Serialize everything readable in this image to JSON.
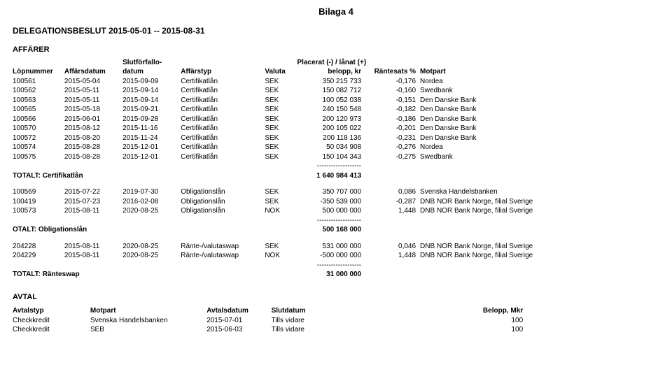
{
  "attachment_label": "Bilaga 4",
  "title": "DELEGATIONSBESLUT 2015-05-01 -- 2015-08-31",
  "affarer_label": "AFFÄRER",
  "headers": {
    "lopnummer": "Löpnummer",
    "affarsdatum": "Affärsdatum",
    "slutforfallo_top": "Slutförfallo-",
    "slutforfallo_bot": "datum",
    "affarstyp": "Affärstyp",
    "valuta": "Valuta",
    "placerat_top": "Placerat (-) / lånat (+)",
    "placerat_bot": "belopp, kr",
    "rantesats": "Räntesats %",
    "motpart": "Motpart"
  },
  "separator": "-------------------",
  "cert_rows": [
    {
      "lop": "100561",
      "ad": "2015-05-04",
      "sd": "2015-09-09",
      "typ": "Certifikatlån",
      "val": "SEK",
      "bel": "350 215 733",
      "rate": "-0,176",
      "mot": "Nordea"
    },
    {
      "lop": "100562",
      "ad": "2015-05-11",
      "sd": "2015-09-14",
      "typ": "Certifikatlån",
      "val": "SEK",
      "bel": "150 082 712",
      "rate": "-0,160",
      "mot": "Swedbank"
    },
    {
      "lop": "100563",
      "ad": "2015-05-11",
      "sd": "2015-09-14",
      "typ": "Certifikatlån",
      "val": "SEK",
      "bel": "100 052 038",
      "rate": "-0,151",
      "mot": "Den Danske Bank"
    },
    {
      "lop": "100565",
      "ad": "2015-05-18",
      "sd": "2015-09-21",
      "typ": "Certifikatlån",
      "val": "SEK",
      "bel": "240 150 548",
      "rate": "-0,182",
      "mot": "Den Danske Bank"
    },
    {
      "lop": "100566",
      "ad": "2015-06-01",
      "sd": "2015-09-28",
      "typ": "Certifikatlån",
      "val": "SEK",
      "bel": "200 120 973",
      "rate": "-0,186",
      "mot": "Den Danske Bank"
    },
    {
      "lop": "100570",
      "ad": "2015-08-12",
      "sd": "2015-11-16",
      "typ": "Certifikatlån",
      "val": "SEK",
      "bel": "200 105 022",
      "rate": "-0,201",
      "mot": "Den Danske Bank"
    },
    {
      "lop": "100572",
      "ad": "2015-08-20",
      "sd": "2015-11-24",
      "typ": "Certifikatlån",
      "val": "SEK",
      "bel": "200 118 136",
      "rate": "-0,231",
      "mot": "Den Danske Bank"
    },
    {
      "lop": "100574",
      "ad": "2015-08-28",
      "sd": "2015-12-01",
      "typ": "Certifikatlån",
      "val": "SEK",
      "bel": "50 034 908",
      "rate": "-0,276",
      "mot": "Nordea"
    },
    {
      "lop": "100575",
      "ad": "2015-08-28",
      "sd": "2015-12-01",
      "typ": "Certifikatlån",
      "val": "SEK",
      "bel": "150 104 343",
      "rate": "-0,275",
      "mot": "Swedbank"
    }
  ],
  "cert_total_label": "TOTALT: Certifikatlån",
  "cert_total_value": "1 640 984 413",
  "oblig_rows": [
    {
      "lop": "100569",
      "ad": "2015-07-22",
      "sd": "2019-07-30",
      "typ": "Obligationslån",
      "val": "SEK",
      "bel": "350 707 000",
      "rate": "0,086",
      "mot": "Svenska Handelsbanken"
    },
    {
      "lop": "100419",
      "ad": "2015-07-23",
      "sd": "2016-02-08",
      "typ": "Obligationslån",
      "val": "SEK",
      "bel": "-350 539 000",
      "rate": "-0,287",
      "mot": "DNB NOR Bank Norge, filial Sverige"
    },
    {
      "lop": "100573",
      "ad": "2015-08-11",
      "sd": "2020-08-25",
      "typ": "Obligationslån",
      "val": "NOK",
      "bel": "500 000 000",
      "rate": "1,448",
      "mot": "DNB NOR Bank Norge, filial Sverige"
    }
  ],
  "oblig_total_label": "OTALT: Obligationslån",
  "oblig_total_value": "500 168 000",
  "swap_rows": [
    {
      "lop": "204228",
      "ad": "2015-08-11",
      "sd": "2020-08-25",
      "typ": "Ränte-/valutaswap",
      "val": "SEK",
      "bel": "531 000 000",
      "rate": "0,046",
      "mot": "DNB NOR Bank Norge, filial Sverige"
    },
    {
      "lop": "204229",
      "ad": "2015-08-11",
      "sd": "2020-08-25",
      "typ": "Ränte-/valutaswap",
      "val": "NOK",
      "bel": "-500 000 000",
      "rate": "1,448",
      "mot": "DNB NOR Bank Norge, filial Sverige"
    }
  ],
  "swap_total_label": "TOTALT: Ränteswap",
  "swap_total_value": "31 000 000",
  "avtal_label": "AVTAL",
  "avtal_headers": {
    "typ": "Avtalstyp",
    "motpart": "Motpart",
    "datum": "Avtalsdatum",
    "slutdatum": "Slutdatum",
    "belopp": "Belopp, Mkr"
  },
  "avtal_rows": [
    {
      "typ": "Checkkredit",
      "mot": "Svenska Handelsbanken",
      "dat": "2015-07-01",
      "slut": "Tills vidare",
      "bel": "100"
    },
    {
      "typ": "Checkkredit",
      "mot": "SEB",
      "dat": "2015-06-03",
      "slut": "Tills vidare",
      "bel": "100"
    }
  ]
}
